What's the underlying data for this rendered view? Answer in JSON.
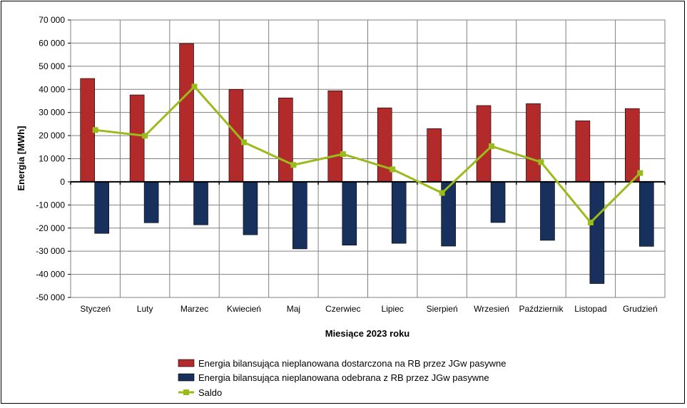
{
  "chart_data": {
    "type": "bar",
    "title": "",
    "xlabel": "Miesiące 2023  roku",
    "ylabel": "Energia [MWh]",
    "ylim": [
      -50000,
      70000
    ],
    "ytick_step": 10000,
    "ytick_labels": [
      "70 000",
      "60 000",
      "50 000",
      "40 000",
      "30 000",
      "20 000",
      "10 000",
      "0",
      "-10 000",
      "-20 000",
      "-30 000",
      "-40 000",
      "-50 000"
    ],
    "grid": true,
    "legend_position": "bottom",
    "categories": [
      "Styczeń",
      "Luty",
      "Marzec",
      "Kwiecień",
      "Maj",
      "Czerwiec",
      "Lipiec",
      "Sierpień",
      "Wrzesień",
      "Październik",
      "Listopad",
      "Grudzień"
    ],
    "series": [
      {
        "name": "Energia bilansująca nieplanowana dostarczona na RB przez JGw pasywne",
        "kind": "bar",
        "color": "#b22a2a",
        "values": [
          44700,
          37600,
          59800,
          40000,
          36300,
          39400,
          32000,
          23000,
          33000,
          33800,
          26400,
          31700
        ]
      },
      {
        "name": "Energia bilansująca nieplanowana odebrana z RB przez JGw pasywne",
        "kind": "bar",
        "color": "#17315c",
        "values": [
          -22300,
          -17700,
          -18600,
          -22900,
          -29000,
          -27400,
          -26600,
          -27800,
          -17600,
          -25300,
          -44000,
          -27900
        ]
      },
      {
        "name": "Saldo",
        "kind": "line",
        "color": "#9bbb1c",
        "values": [
          22400,
          19900,
          41200,
          17100,
          7300,
          12000,
          5400,
          -4800,
          15400,
          8500,
          -17600,
          3800
        ]
      }
    ]
  }
}
